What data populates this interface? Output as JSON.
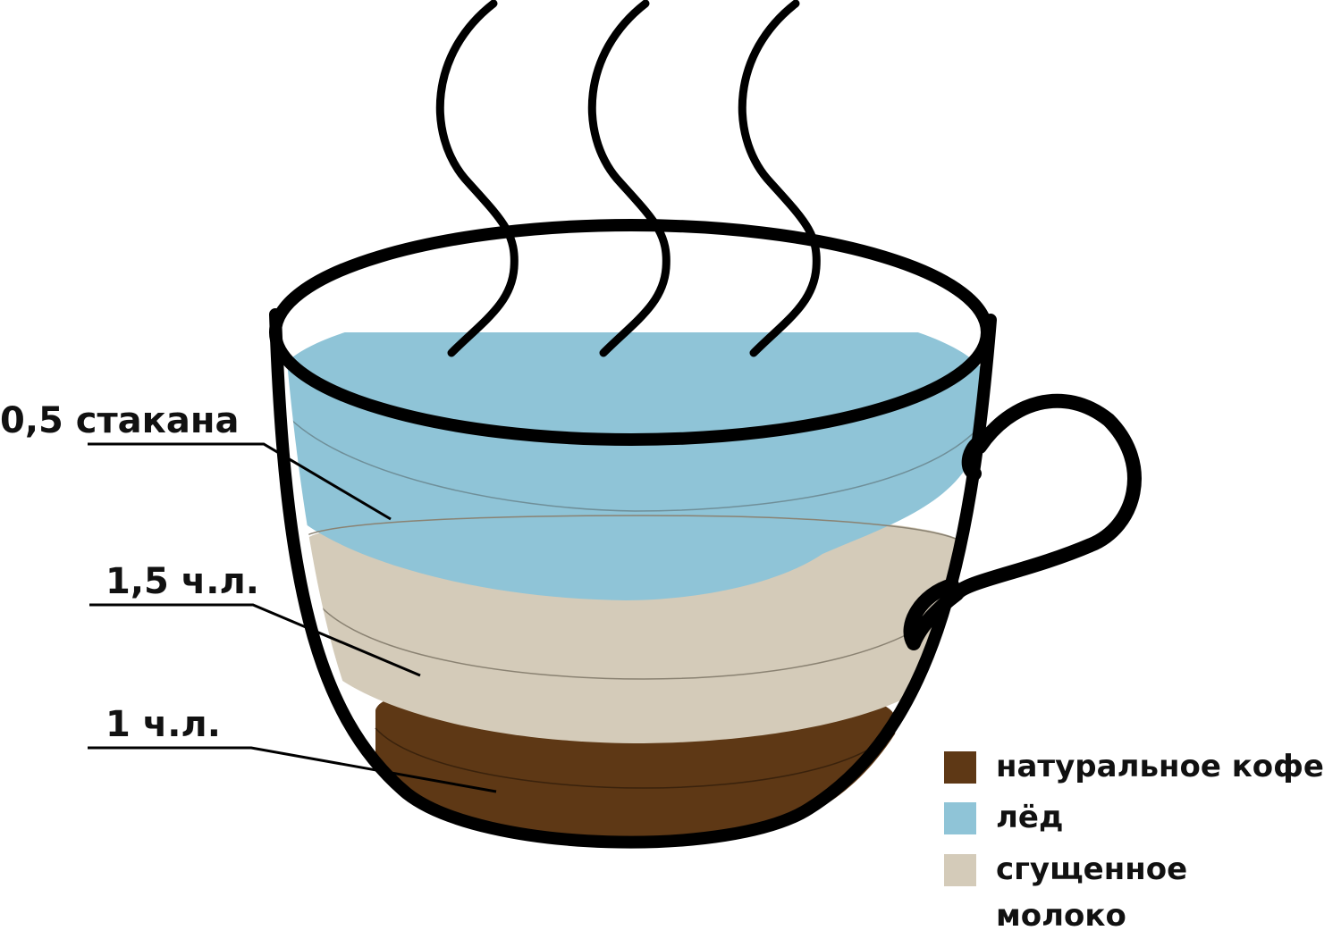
{
  "callouts": {
    "half_glass": "0,5 стакана",
    "milk_dose": "1,5 ч.л.",
    "coffee_dose": "1 ч.л."
  },
  "legend": [
    {
      "label": "натуральное кофе",
      "color": "#5e3815"
    },
    {
      "label": "лёд",
      "color": "#8fc4d7"
    },
    {
      "label": "сгущенное молоко",
      "color": "#d4cbb9"
    }
  ],
  "colors": {
    "outline": "#000000",
    "coffee": "#5e3815",
    "ice": "#8fc4d7",
    "milk": "#d4cbb9"
  }
}
